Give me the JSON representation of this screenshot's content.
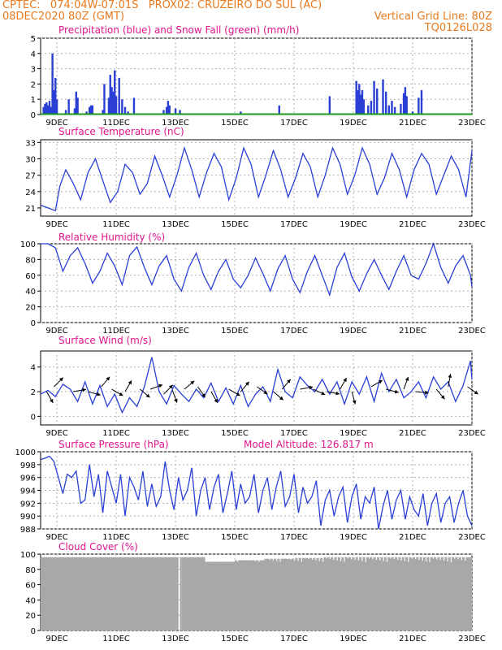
{
  "header": {
    "line1": "CPTEC:   074:04W-07:01S   PROX02: CRUZEIRO DO SUL (AC)",
    "line2_left": "08DEC2020 80Z (GMT)",
    "line2_right": "Vertical Grid Line: 80Z",
    "code": "TQ0126L028"
  },
  "colors": {
    "header": "#e87a1e",
    "title": "#e0148c",
    "line": "#2a3fd6",
    "snow": "#1a9a1a",
    "cloud": "#a8a8a8"
  },
  "chart_data": [
    {
      "type": "bar",
      "title": "Precipitation (blue) and Snow Fall (green) (mm/h)",
      "x_ticks": [
        "9DEC",
        "11DEC",
        "13DEC",
        "15DEC",
        "17DEC",
        "19DEC",
        "21DEC",
        "23DEC"
      ],
      "x_tick_days": [
        1,
        3,
        5,
        7,
        9,
        11,
        13,
        15
      ],
      "xlim_days": [
        0.45,
        15
      ],
      "ylim": [
        0,
        5
      ],
      "y_ticks": [
        "0",
        "1",
        "2",
        "3",
        "4",
        "5"
      ],
      "grid": true,
      "series": [
        {
          "name": "Precipitation",
          "color": "blue",
          "x_days": [
            0.55,
            0.6,
            0.65,
            0.7,
            0.75,
            0.8,
            0.85,
            0.9,
            0.95,
            1.0,
            1.3,
            1.4,
            1.6,
            1.65,
            1.7,
            2.0,
            2.1,
            2.15,
            2.2,
            2.55,
            2.6,
            2.75,
            2.8,
            2.85,
            2.9,
            2.95,
            3.0,
            3.1,
            3.2,
            3.3,
            3.4,
            3.6,
            4.6,
            4.7,
            4.75,
            4.8,
            5.0,
            5.15,
            7.2,
            8.5,
            10.2,
            11.1,
            11.15,
            11.2,
            11.25,
            11.3,
            11.35,
            11.5,
            11.6,
            11.7,
            11.8,
            12.0,
            12.1,
            12.2,
            12.3,
            12.4,
            12.6,
            12.7,
            12.75,
            12.8,
            13.0,
            13.2,
            13.3
          ],
          "values": [
            0.5,
            0.7,
            0.8,
            0.6,
            0.9,
            0.5,
            4.0,
            1.6,
            2.4,
            1.0,
            0.3,
            1.0,
            0.4,
            1.5,
            1.1,
            0.2,
            0.5,
            0.6,
            0.6,
            0.3,
            2.0,
            1.1,
            2.6,
            1.8,
            1.5,
            2.9,
            1.2,
            2.4,
            1.0,
            0.5,
            0.2,
            1.1,
            0.3,
            0.5,
            0.9,
            0.6,
            0.4,
            0.3,
            0.2,
            0.6,
            1.2,
            2.2,
            1.6,
            2.0,
            1.3,
            1.6,
            1.0,
            0.6,
            0.9,
            2.2,
            1.7,
            2.3,
            1.5,
            0.6,
            0.9,
            0.5,
            0.7,
            1.4,
            1.8,
            1.2,
            0.2,
            1.1,
            1.6
          ]
        },
        {
          "name": "Snow Fall",
          "color": "green",
          "x_days": [
            0.45,
            15
          ],
          "values": [
            0,
            0
          ]
        }
      ]
    },
    {
      "type": "line",
      "title": "Surface Temperature (nC)",
      "x_ticks": [
        "9DEC",
        "11DEC",
        "13DEC",
        "15DEC",
        "17DEC",
        "19DEC",
        "21DEC",
        "23DEC"
      ],
      "x_tick_days": [
        1,
        3,
        5,
        7,
        9,
        11,
        13,
        15
      ],
      "ylim": [
        19.5,
        33.5
      ],
      "y_ticks": [
        "21",
        "24",
        "27",
        "30",
        "33"
      ],
      "y_tick_values": [
        21,
        24,
        27,
        30,
        33
      ],
      "grid": true,
      "series": [
        {
          "x_days": [
            0.45,
            0.7,
            0.95,
            1.1,
            1.3,
            1.55,
            1.8,
            2.05,
            2.3,
            2.55,
            2.8,
            3.05,
            3.3,
            3.55,
            3.8,
            4.05,
            4.3,
            4.55,
            4.8,
            5.05,
            5.3,
            5.55,
            5.8,
            6.05,
            6.3,
            6.55,
            6.8,
            7.05,
            7.3,
            7.55,
            7.8,
            8.05,
            8.3,
            8.55,
            8.8,
            9.05,
            9.3,
            9.55,
            9.8,
            10.05,
            10.3,
            10.55,
            10.8,
            11.05,
            11.3,
            11.55,
            11.8,
            12.05,
            12.3,
            12.55,
            12.8,
            13.05,
            13.3,
            13.55,
            13.8,
            14.05,
            14.3,
            14.55,
            14.8,
            15.0
          ],
          "values": [
            21.5,
            21.0,
            20.5,
            25.0,
            28.0,
            25.5,
            22.5,
            27.5,
            30.0,
            26.0,
            22.0,
            24.0,
            29.0,
            27.5,
            23.5,
            25.5,
            30.5,
            27.0,
            23.0,
            27.0,
            32.0,
            28.0,
            23.0,
            27.5,
            31.0,
            28.5,
            22.5,
            26.5,
            32.0,
            29.0,
            23.0,
            27.0,
            31.5,
            28.0,
            23.0,
            26.5,
            31.0,
            28.5,
            23.0,
            27.0,
            32.0,
            29.0,
            23.5,
            27.0,
            32.0,
            29.0,
            23.5,
            26.5,
            31.0,
            28.0,
            23.0,
            28.0,
            31.0,
            29.0,
            23.5,
            27.0,
            30.5,
            28.0,
            23.0,
            31.5
          ]
        }
      ]
    },
    {
      "type": "line",
      "title": "Relative Humidity (%)",
      "x_ticks": [
        "9DEC",
        "11DEC",
        "13DEC",
        "15DEC",
        "17DEC",
        "19DEC",
        "21DEC",
        "23DEC"
      ],
      "x_tick_days": [
        1,
        3,
        5,
        7,
        9,
        11,
        13,
        15
      ],
      "ylim": [
        0,
        100
      ],
      "y_ticks": [
        "0",
        "20",
        "40",
        "60",
        "80",
        "100"
      ],
      "y_tick_values": [
        0,
        20,
        40,
        60,
        80,
        100
      ],
      "grid": true,
      "series": [
        {
          "x_days": [
            0.45,
            0.7,
            0.95,
            1.2,
            1.45,
            1.7,
            1.95,
            2.2,
            2.45,
            2.7,
            2.95,
            3.2,
            3.45,
            3.7,
            3.95,
            4.2,
            4.45,
            4.7,
            4.95,
            5.2,
            5.45,
            5.7,
            5.95,
            6.2,
            6.45,
            6.7,
            6.95,
            7.2,
            7.45,
            7.7,
            7.95,
            8.2,
            8.45,
            8.7,
            8.95,
            9.2,
            9.45,
            9.7,
            9.95,
            10.2,
            10.45,
            10.7,
            10.95,
            11.2,
            11.45,
            11.7,
            11.95,
            12.2,
            12.45,
            12.7,
            12.95,
            13.2,
            13.45,
            13.7,
            13.95,
            14.2,
            14.45,
            14.7,
            14.95,
            15.0
          ],
          "values": [
            100,
            100,
            95,
            65,
            85,
            95,
            75,
            50,
            65,
            88,
            72,
            48,
            85,
            96,
            70,
            48,
            72,
            85,
            55,
            40,
            70,
            88,
            60,
            42,
            65,
            80,
            55,
            44,
            60,
            82,
            62,
            40,
            68,
            85,
            55,
            38,
            65,
            85,
            60,
            35,
            70,
            88,
            58,
            40,
            62,
            80,
            60,
            42,
            65,
            85,
            60,
            55,
            75,
            100,
            70,
            50,
            72,
            85,
            60,
            45
          ]
        }
      ]
    },
    {
      "type": "line",
      "title": "Surface Wind (m/s)",
      "x_ticks": [
        "9DEC",
        "11DEC",
        "13DEC",
        "15DEC",
        "17DEC",
        "19DEC",
        "21DEC",
        "23DEC"
      ],
      "x_tick_days": [
        1,
        3,
        5,
        7,
        9,
        11,
        13,
        15
      ],
      "ylim": [
        -0.7,
        5.3
      ],
      "y_ticks": [
        "0",
        "2",
        "4"
      ],
      "y_tick_values": [
        0,
        2,
        4
      ],
      "grid": true,
      "series": [
        {
          "x_days": [
            0.45,
            0.7,
            0.95,
            1.2,
            1.45,
            1.7,
            1.95,
            2.2,
            2.45,
            2.7,
            2.95,
            3.2,
            3.45,
            3.7,
            3.95,
            4.2,
            4.45,
            4.7,
            4.95,
            5.2,
            5.45,
            5.7,
            5.95,
            6.2,
            6.45,
            6.7,
            6.95,
            7.2,
            7.45,
            7.7,
            7.95,
            8.2,
            8.45,
            8.7,
            8.95,
            9.2,
            9.45,
            9.7,
            9.95,
            10.2,
            10.45,
            10.7,
            10.95,
            11.2,
            11.45,
            11.7,
            11.95,
            12.2,
            12.45,
            12.7,
            12.95,
            13.2,
            13.45,
            13.7,
            13.95,
            14.2,
            14.45,
            14.7,
            14.95,
            15.0
          ],
          "values": [
            1.8,
            2.1,
            1.6,
            2.6,
            2.2,
            1.2,
            2.8,
            1.0,
            2.5,
            0.8,
            1.8,
            0.3,
            1.5,
            0.8,
            2.4,
            4.8,
            2.0,
            1.0,
            2.5,
            1.8,
            1.2,
            2.2,
            1.5,
            2.7,
            1.2,
            2.3,
            1.0,
            2.5,
            0.8,
            1.8,
            2.4,
            1.2,
            3.8,
            2.0,
            1.5,
            3.2,
            2.5,
            2.0,
            3.0,
            1.8,
            2.8,
            1.0,
            2.8,
            1.8,
            3.2,
            1.2,
            3.5,
            2.0,
            3.0,
            1.5,
            2.0,
            2.8,
            1.5,
            3.2,
            2.2,
            2.8,
            1.2,
            2.5,
            4.5,
            3.0
          ]
        }
      ],
      "arrows": {
        "x_days": [
          0.65,
          0.9,
          1.55,
          2.05,
          2.5,
          2.85,
          3.3,
          3.8,
          4.15,
          4.6,
          4.9,
          5.3,
          5.75,
          6.2,
          6.8,
          7.2,
          7.75,
          8.3,
          8.6,
          9.2,
          9.65,
          10.1,
          10.55,
          10.95,
          11.6,
          12.1,
          12.7,
          13.1,
          13.8,
          14.2,
          14.85
        ],
        "y": [
          2.0,
          2.4,
          2.0,
          2.0,
          2.4,
          2.2,
          2.0,
          2.2,
          2.2,
          1.8,
          2.1,
          2.2,
          2.4,
          2.0,
          2.2,
          2.0,
          2.4,
          2.0,
          2.2,
          2.2,
          2.2,
          2.0,
          2.2,
          2.0,
          2.4,
          2.2,
          2.2,
          2.0,
          2.2,
          2.4,
          2.4
        ],
        "dir": [
          -60,
          45,
          10,
          -15,
          50,
          -30,
          60,
          -40,
          20,
          45,
          -70,
          40,
          -55,
          -60,
          -30,
          50,
          -35,
          -40,
          50,
          10,
          -25,
          -10,
          60,
          -75,
          30,
          -15,
          70,
          -5,
          -50,
          80,
          -35
        ]
      }
    },
    {
      "type": "line",
      "title": "Surface Pressure (hPa)",
      "annotation": "Model Altitude: 126.817 m",
      "x_ticks": [
        "9DEC",
        "11DEC",
        "13DEC",
        "15DEC",
        "17DEC",
        "19DEC",
        "21DEC",
        "23DEC"
      ],
      "x_tick_days": [
        1,
        3,
        5,
        7,
        9,
        11,
        13,
        15
      ],
      "ylim": [
        988,
        1000
      ],
      "y_ticks": [
        "988",
        "990",
        "992",
        "994",
        "996",
        "998",
        "1000"
      ],
      "y_tick_values": [
        988,
        990,
        992,
        994,
        996,
        998,
        1000
      ],
      "grid": true,
      "series": [
        {
          "x_days": [
            0.45,
            0.6,
            0.75,
            0.9,
            1.05,
            1.2,
            1.35,
            1.5,
            1.65,
            1.8,
            1.95,
            2.1,
            2.25,
            2.4,
            2.55,
            2.7,
            2.85,
            3.0,
            3.15,
            3.3,
            3.45,
            3.6,
            3.75,
            3.9,
            4.05,
            4.2,
            4.35,
            4.5,
            4.65,
            4.8,
            4.95,
            5.1,
            5.25,
            5.4,
            5.55,
            5.7,
            5.85,
            6.0,
            6.15,
            6.3,
            6.45,
            6.6,
            6.75,
            6.9,
            7.05,
            7.2,
            7.35,
            7.5,
            7.65,
            7.8,
            7.95,
            8.1,
            8.25,
            8.4,
            8.55,
            8.7,
            8.85,
            9.0,
            9.15,
            9.3,
            9.45,
            9.6,
            9.75,
            9.9,
            10.05,
            10.2,
            10.35,
            10.5,
            10.65,
            10.8,
            10.95,
            11.1,
            11.25,
            11.4,
            11.55,
            11.7,
            11.85,
            12.0,
            12.15,
            12.3,
            12.45,
            12.6,
            12.75,
            12.9,
            13.05,
            13.2,
            13.35,
            13.5,
            13.65,
            13.8,
            13.95,
            14.1,
            14.25,
            14.4,
            14.55,
            14.7,
            14.85,
            15.0
          ],
          "values": [
            998.8,
            999.0,
            999.3,
            998.5,
            996.0,
            993.5,
            996.5,
            996.0,
            997.0,
            992.0,
            992.5,
            998.0,
            993.0,
            996.5,
            990.5,
            997.0,
            994.5,
            992.0,
            996.5,
            990.0,
            996.0,
            994.5,
            992.5,
            997.0,
            991.5,
            995.0,
            991.5,
            993.0,
            998.5,
            994.0,
            991.0,
            996.0,
            992.5,
            994.0,
            997.5,
            990.0,
            994.0,
            996.0,
            991.0,
            994.5,
            996.5,
            990.5,
            993.5,
            997.0,
            991.0,
            995.0,
            992.0,
            993.0,
            996.5,
            990.5,
            994.0,
            996.0,
            991.0,
            994.5,
            997.0,
            991.5,
            993.0,
            996.5,
            990.5,
            994.5,
            992.0,
            993.0,
            995.5,
            988.5,
            992.5,
            994.0,
            990.0,
            993.0,
            994.5,
            989.0,
            993.0,
            995.0,
            989.5,
            993.0,
            992.0,
            994.5,
            988.0,
            991.5,
            994.0,
            989.5,
            992.5,
            994.0,
            989.5,
            993.0,
            991.0,
            990.0,
            993.5,
            988.5,
            992.0,
            993.5,
            989.0,
            992.0,
            993.0,
            989.0,
            992.0,
            994.0,
            990.0,
            988.5
          ]
        }
      ]
    },
    {
      "type": "area",
      "title": "Cloud Cover (%)",
      "x_ticks": [
        "9DEC",
        "11DEC",
        "13DEC",
        "15DEC",
        "17DEC",
        "19DEC",
        "21DEC",
        "23DEC"
      ],
      "x_tick_days": [
        1,
        3,
        5,
        7,
        9,
        11,
        13,
        15
      ],
      "ylim": [
        0,
        100
      ],
      "y_ticks": [
        "0",
        "20",
        "40",
        "60",
        "80",
        "100"
      ],
      "y_tick_values": [
        0,
        20,
        40,
        60,
        80,
        100
      ],
      "grid": true,
      "series": [
        {
          "x_days": [
            0.45,
            1.0,
            2.0,
            3.0,
            4.0,
            5.0,
            5.1,
            5.15,
            5.2,
            6.0,
            7.0,
            8.0,
            9.0,
            10.0,
            11.0,
            12.0,
            13.0,
            14.0,
            15.0
          ],
          "values": [
            96,
            96,
            96,
            96,
            96,
            96,
            0,
            96,
            96,
            90,
            92,
            94,
            95,
            96,
            96,
            96,
            96,
            96,
            96
          ]
        }
      ]
    }
  ]
}
